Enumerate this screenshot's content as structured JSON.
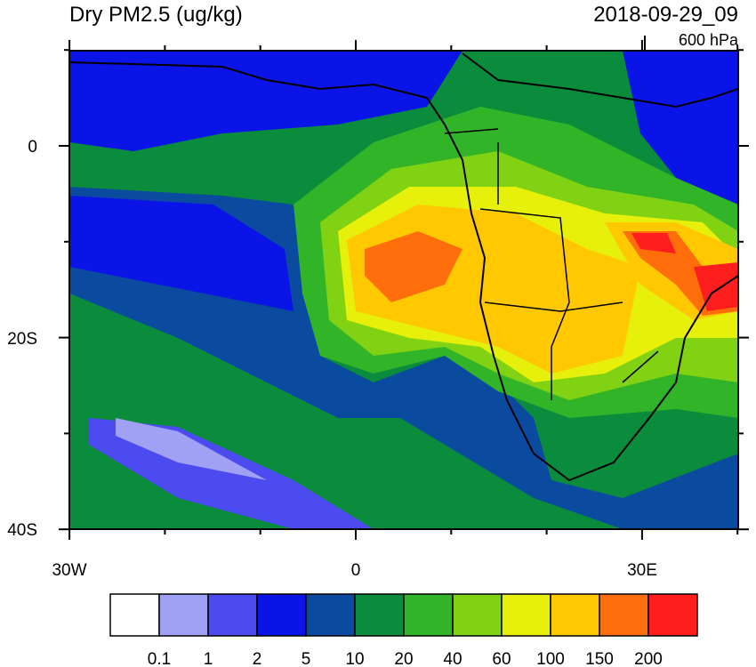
{
  "header": {
    "title": "Dry PM2.5 (ug/kg)",
    "time": "2018-09-29_09",
    "level": "600 hPa"
  },
  "map": {
    "lat_labels": [
      "0",
      "20S",
      "40S"
    ],
    "lon_labels": [
      "30W",
      "0",
      "30E"
    ]
  },
  "colorbar": {
    "colors": [
      "#ffffff",
      "#a0a0f5",
      "#4b4bf0",
      "#0a14e6",
      "#0a4ba0",
      "#0a8c3c",
      "#32b428",
      "#82d214",
      "#e6f00a",
      "#ffc800",
      "#ff6e0a",
      "#ff1e1e"
    ],
    "labels": [
      "0.1",
      "1",
      "2",
      "5",
      "10",
      "20",
      "40",
      "60",
      "100",
      "150",
      "200"
    ]
  }
}
